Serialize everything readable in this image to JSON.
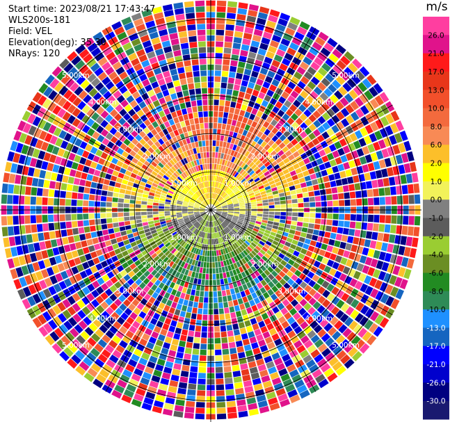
{
  "header": {
    "start_time": "Start time: 2023/08/21 17:43:47",
    "instrument": "WLS200s-181",
    "field": "Field: VEL",
    "elevation": "Elevation(deg): 35.30",
    "nrays": "NRays: 120"
  },
  "colorbar": {
    "unit": "m/s",
    "ticks": [
      "26.0",
      "21.0",
      "17.0",
      "13.0",
      "10.0",
      "8.0",
      "6.0",
      "2.0",
      "1.0",
      "0.0",
      "-1.0",
      "-2.0",
      "-4.0",
      "-6.0",
      "-8.0",
      "-10.0",
      "-13.0",
      "-17.0",
      "-21.0",
      "-26.0",
      "-30.0"
    ],
    "colors": [
      "#ff3ea0",
      "#e0138b",
      "#ff1a1a",
      "#e8361a",
      "#f2502b",
      "#f36a3d",
      "#f88a55",
      "#fcbf2a",
      "#ffff00",
      "#f2f25a",
      "#808080",
      "#5c5c5c",
      "#9acd32",
      "#6b8e23",
      "#228b22",
      "#2e8b57",
      "#1e90ff",
      "#1565c0",
      "#0000ff",
      "#0000cd",
      "#000080",
      "#191970"
    ]
  },
  "chart_data": {
    "type": "heatmap",
    "projection": "polar-ppi",
    "field": "VEL",
    "nrays": 120,
    "elevation_deg": 35.3,
    "range_rings_km": [
      "1.00km",
      "2.00km",
      "3.00km",
      "4.00km",
      "5.00km"
    ],
    "range_ring_values_km": [
      1,
      2,
      3,
      4,
      5
    ],
    "value_range": [
      -30,
      30
    ],
    "pattern": "negative (approaching) velocities to the south, positive (receding) to the north; noisy far range"
  }
}
